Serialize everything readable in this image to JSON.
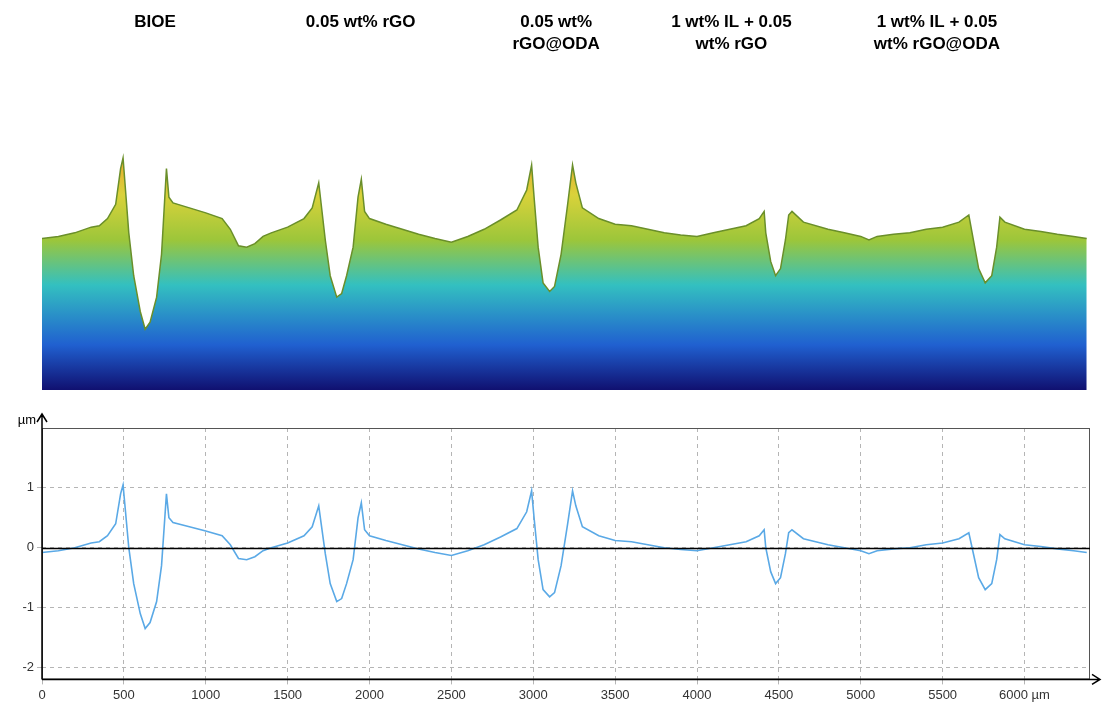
{
  "chart_data": {
    "type": "line",
    "annotations": [
      {
        "text": "BIOE",
        "x": 690
      },
      {
        "text": "0.05 wt% rGO",
        "x": 1946
      },
      {
        "text": "0.05 wt% rGO@ODA",
        "x": 3140
      },
      {
        "text": "1 wt% IL + 0.05 wt% rGO",
        "x": 4210
      },
      {
        "text": "1 wt% IL + 0.05 wt% rGO@ODA",
        "x": 5465
      }
    ],
    "y_label": "µm",
    "xlim": [
      0,
      6400
    ],
    "xticks": [
      0,
      500,
      1000,
      1500,
      2000,
      2500,
      3000,
      3500,
      4000,
      4500,
      5000,
      5500,
      {
        "value": 6000,
        "label": "6000 µm"
      }
    ],
    "ylim": [
      -2.2,
      2.0
    ],
    "yticks": [
      -2,
      -1,
      0,
      1
    ],
    "grid": true,
    "series": [
      {
        "color": "#5aa9e6",
        "x": [
          0,
          100,
          200,
          300,
          350,
          400,
          450,
          480,
          495,
          510,
          530,
          560,
          600,
          630,
          660,
          700,
          730,
          750,
          760,
          775,
          800,
          900,
          1000,
          1100,
          1150,
          1200,
          1250,
          1300,
          1350,
          1400,
          1500,
          1600,
          1650,
          1690,
          1705,
          1730,
          1760,
          1800,
          1830,
          1860,
          1900,
          1930,
          1950,
          1970,
          2000,
          2100,
          2200,
          2300,
          2400,
          2500,
          2600,
          2700,
          2800,
          2900,
          2960,
          2990,
          3005,
          3030,
          3060,
          3100,
          3130,
          3170,
          3210,
          3240,
          3260,
          3300,
          3400,
          3500,
          3600,
          3700,
          3800,
          3900,
          4000,
          4100,
          4200,
          4300,
          4380,
          4410,
          4420,
          4450,
          4480,
          4510,
          4540,
          4560,
          4580,
          4650,
          4800,
          4900,
          5000,
          5050,
          5100,
          5200,
          5300,
          5400,
          5500,
          5600,
          5660,
          5680,
          5720,
          5760,
          5800,
          5830,
          5850,
          5880,
          6000,
          6100,
          6200,
          6300,
          6380
        ],
        "values": [
          -0.08,
          -0.05,
          0.0,
          0.08,
          0.1,
          0.2,
          0.4,
          0.9,
          1.05,
          0.6,
          0.0,
          -0.6,
          -1.1,
          -1.35,
          -1.25,
          -0.9,
          -0.3,
          0.5,
          0.9,
          0.5,
          0.42,
          0.35,
          0.28,
          0.2,
          0.05,
          -0.18,
          -0.2,
          -0.15,
          -0.05,
          0.0,
          0.08,
          0.2,
          0.35,
          0.7,
          0.4,
          -0.1,
          -0.6,
          -0.9,
          -0.85,
          -0.6,
          -0.2,
          0.5,
          0.75,
          0.3,
          0.2,
          0.12,
          0.05,
          -0.02,
          -0.08,
          -0.13,
          -0.05,
          0.05,
          0.18,
          0.32,
          0.6,
          0.95,
          0.5,
          -0.2,
          -0.7,
          -0.82,
          -0.75,
          -0.3,
          0.4,
          0.95,
          0.7,
          0.35,
          0.2,
          0.12,
          0.1,
          0.05,
          0.0,
          -0.03,
          -0.05,
          0.0,
          0.05,
          0.1,
          0.2,
          0.3,
          0.0,
          -0.4,
          -0.6,
          -0.5,
          -0.1,
          0.25,
          0.3,
          0.15,
          0.05,
          0.0,
          -0.05,
          -0.1,
          -0.05,
          -0.02,
          0.0,
          0.05,
          0.08,
          0.15,
          0.25,
          0.0,
          -0.5,
          -0.7,
          -0.6,
          -0.2,
          0.22,
          0.15,
          0.05,
          0.02,
          -0.02,
          -0.05,
          -0.08
        ]
      }
    ]
  }
}
